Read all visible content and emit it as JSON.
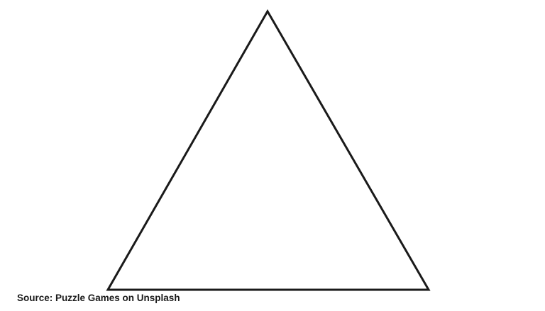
{
  "figure": {
    "shape": "triangle-icon",
    "stroke_color": "#1a1a1a",
    "fill_color": "#ffffff",
    "background_color": "#ffffff"
  },
  "caption": {
    "text": "Source: Puzzle Games on Unsplash"
  }
}
